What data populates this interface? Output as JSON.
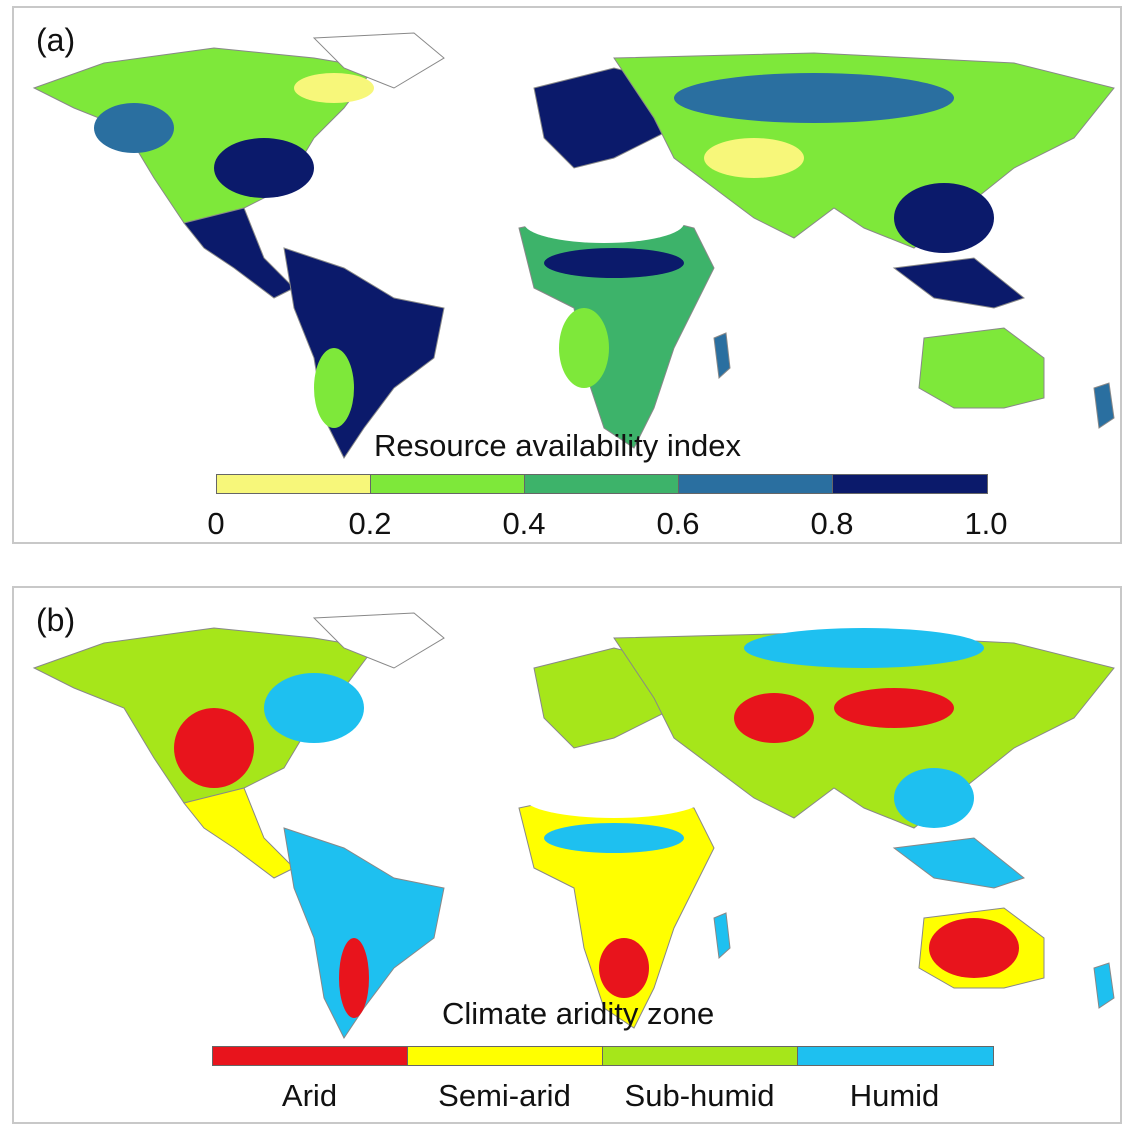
{
  "panel_a": {
    "label": "(a)",
    "legend_title": "Resource availability index",
    "ticks": [
      "0",
      "0.2",
      "0.4",
      "0.6",
      "0.8",
      "1.0"
    ],
    "colors": [
      "#f7f77a",
      "#7ee83a",
      "#3db36a",
      "#2a6fa0",
      "#0b1a6b"
    ]
  },
  "panel_b": {
    "label": "(b)",
    "legend_title": "Climate aridity zone",
    "categories": [
      "Arid",
      "Semi-arid",
      "Sub-humid",
      "Humid"
    ],
    "colors": [
      "#e8141c",
      "#ffff00",
      "#a6e61a",
      "#1ec0f0"
    ]
  },
  "coastline_color": "#888888"
}
